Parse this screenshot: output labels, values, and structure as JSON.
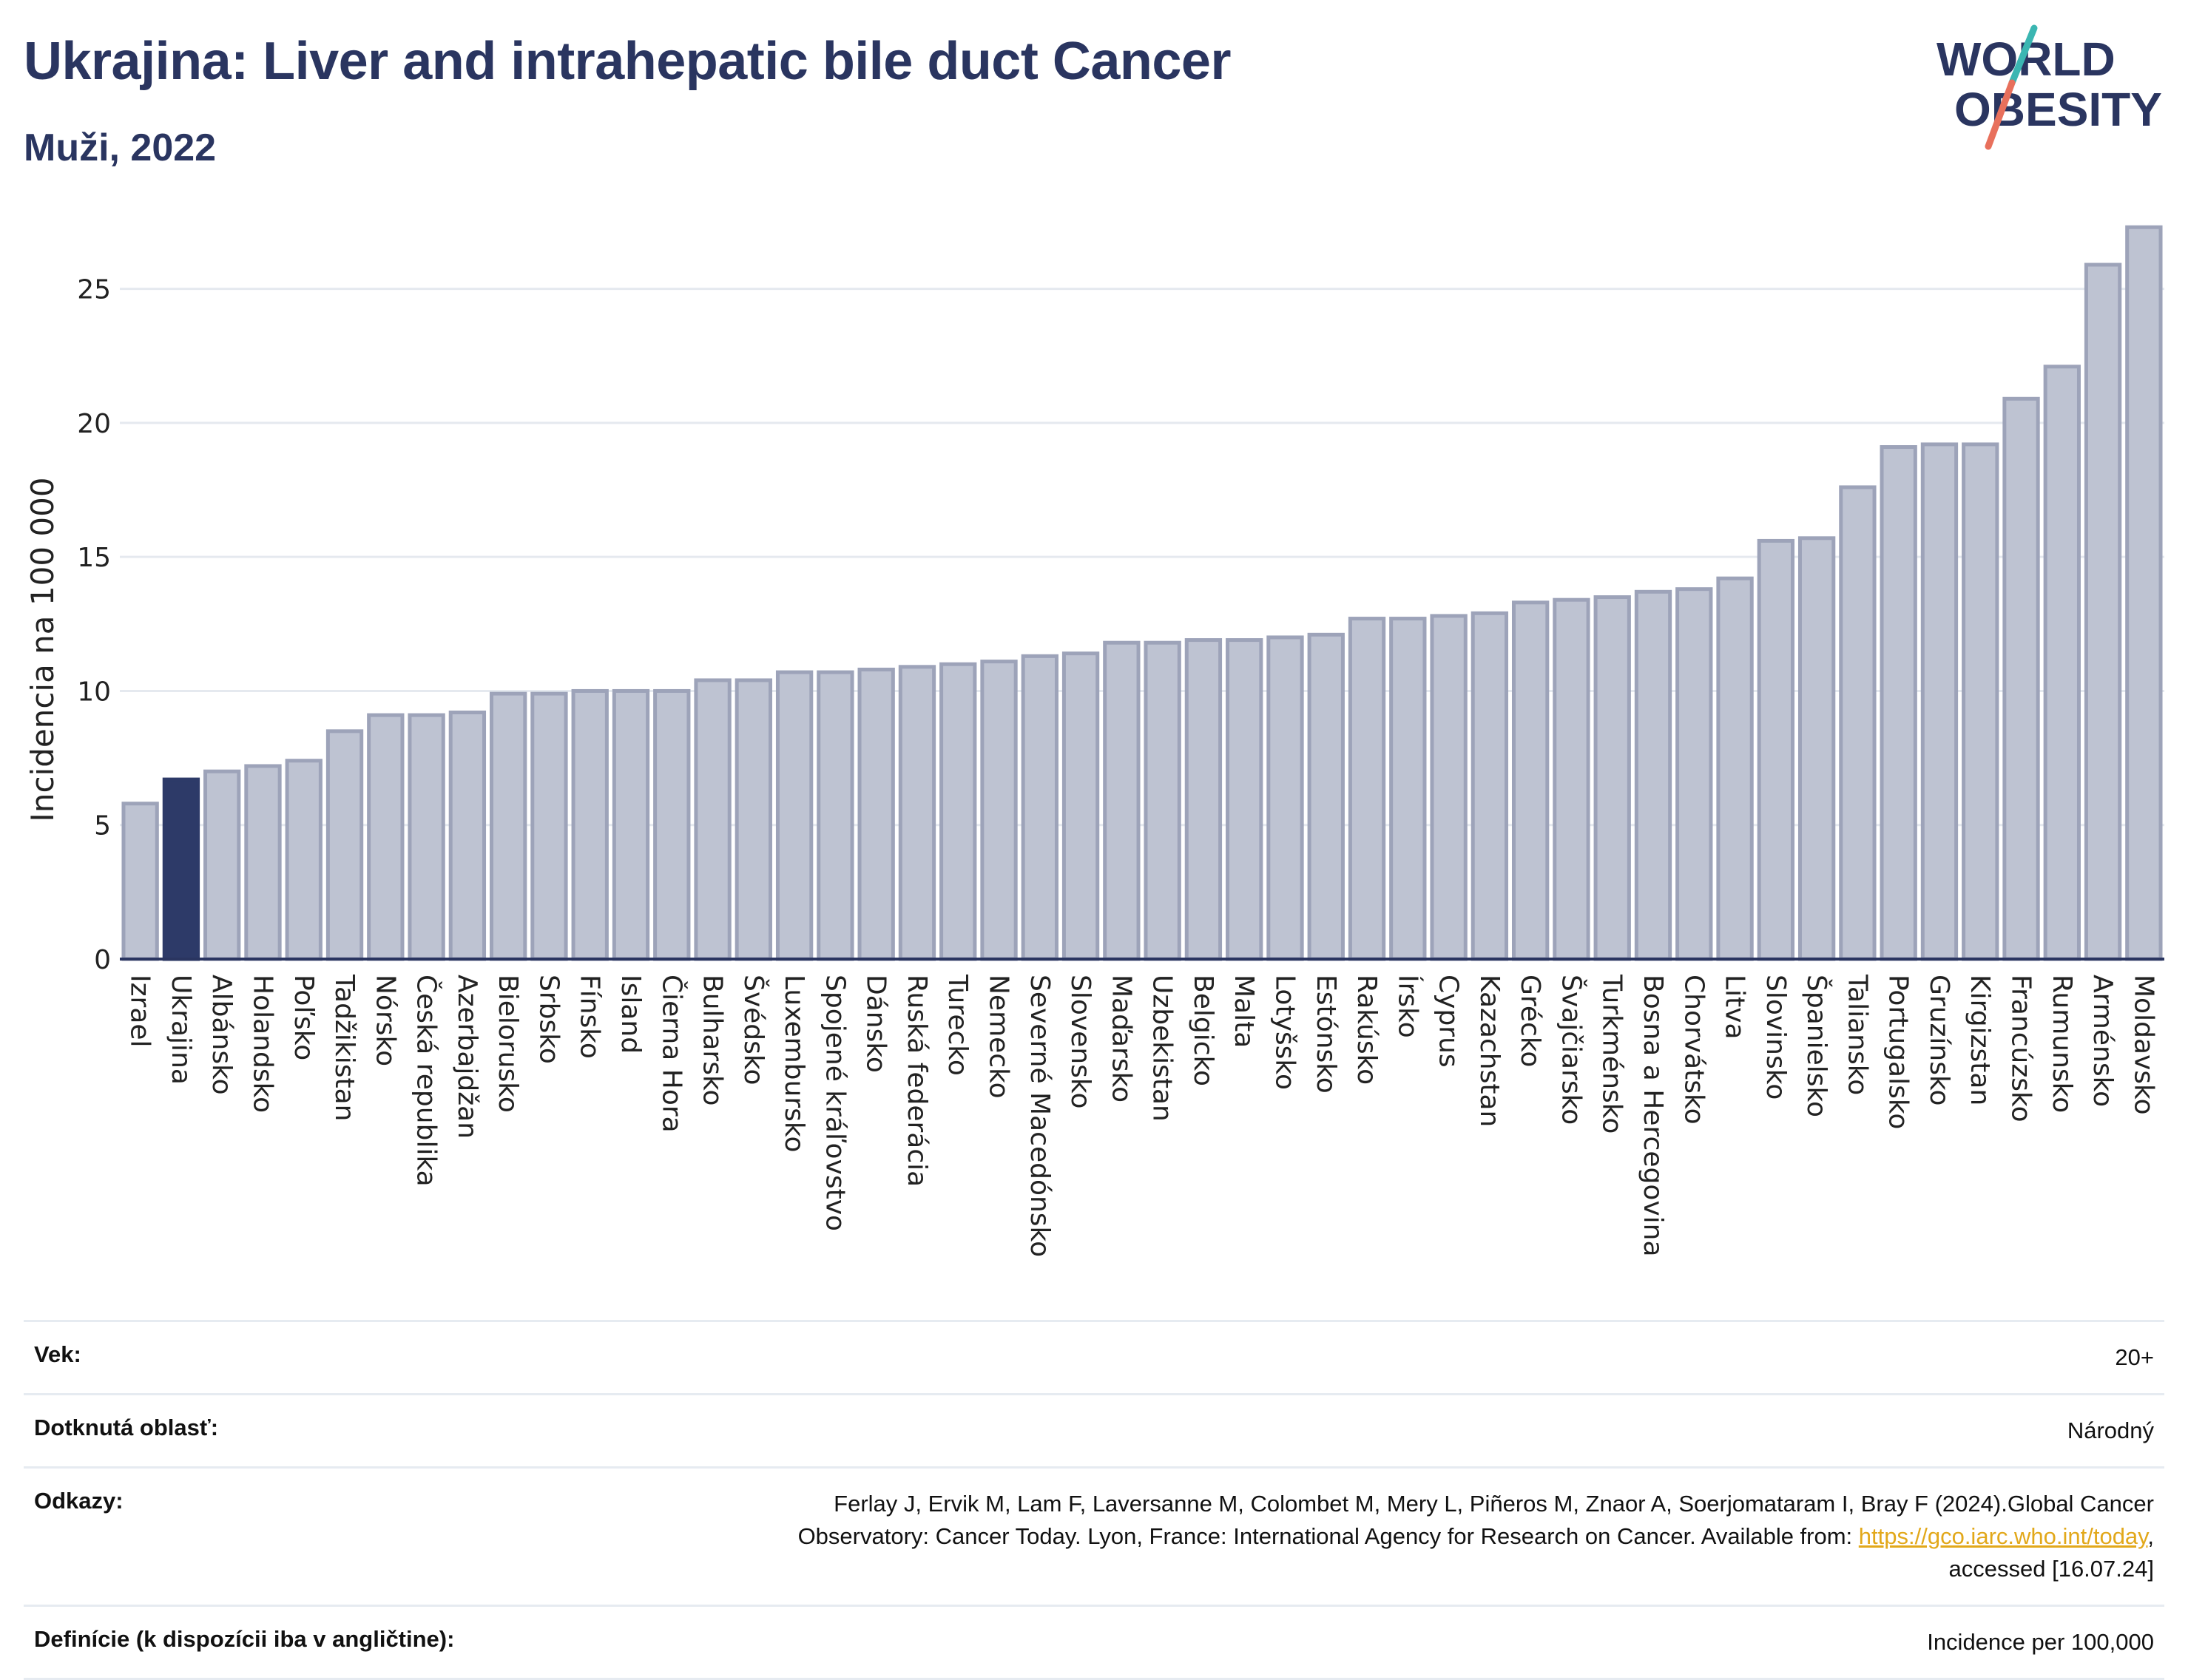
{
  "header": {
    "title": "Ukrajina: Liver and intrahepatic bile duct Cancer",
    "subtitle": "Muži, 2022"
  },
  "logo": {
    "line1": "WORLD",
    "line2": "OBESITY"
  },
  "colors": {
    "bar": "#bec3d2",
    "bar_border": "#9da3b9",
    "highlight": "#2d3a68",
    "title": "#2a3560",
    "grid": "#e5e9ef",
    "axis": "#2a3560"
  },
  "chart_data": {
    "type": "bar",
    "title": "Ukrajina: Liver and intrahepatic bile duct Cancer",
    "subtitle": "Muži, 2022",
    "ylabel": "Incidencia na 100 000",
    "xlabel": "",
    "ylim": [
      0,
      27.5
    ],
    "yticks": [
      0,
      5,
      10,
      15,
      20,
      25
    ],
    "grid": true,
    "highlight": "Ukrajina",
    "categories": [
      "Izrael",
      "Ukrajina",
      "Albánsko",
      "Holandsko",
      "Poľsko",
      "Tadžikistan",
      "Nórsko",
      "Česká republika",
      "Azerbajdžan",
      "Bielorusko",
      "Srbsko",
      "Fínsko",
      "Island",
      "Čierna Hora",
      "Bulharsko",
      "Švédsko",
      "Luxembursko",
      "Spojené kráľovstvo",
      "Dánsko",
      "Ruská federácia",
      "Turecko",
      "Nemecko",
      "Severné Macedónsko",
      "Slovensko",
      "Maďarsko",
      "Uzbekistan",
      "Belgicko",
      "Malta",
      "Lotyšsko",
      "Estónsko",
      "Rakúsko",
      "Írsko",
      "Cyprus",
      "Kazachstan",
      "Grécko",
      "Švajčiarsko",
      "Turkménsko",
      "Bosna a Hercegovina",
      "Chorvátsko",
      "Litva",
      "Slovinsko",
      "Španielsko",
      "Taliansko",
      "Portugalsko",
      "Gruzínsko",
      "Kirgizstan",
      "Francúzsko",
      "Rumunsko",
      "Arménsko",
      "Moldavsko"
    ],
    "values": [
      5.8,
      6.7,
      7.0,
      7.2,
      7.4,
      8.5,
      9.1,
      9.1,
      9.2,
      9.9,
      9.9,
      10.0,
      10.0,
      10.0,
      10.4,
      10.4,
      10.7,
      10.7,
      10.8,
      10.9,
      11.0,
      11.1,
      11.3,
      11.4,
      11.8,
      11.8,
      11.9,
      11.9,
      12.0,
      12.1,
      12.7,
      12.7,
      12.8,
      12.9,
      13.3,
      13.4,
      13.5,
      13.7,
      13.8,
      14.2,
      15.6,
      15.7,
      17.6,
      19.1,
      19.2,
      19.2,
      20.9,
      22.1,
      25.9,
      27.3
    ]
  },
  "info": {
    "rows": [
      {
        "key": "Vek:",
        "value": "20+"
      },
      {
        "key": "Dotknutá oblasť:",
        "value": "Národný"
      },
      {
        "key": "Odkazy:",
        "value_line1": "Ferlay J, Ervik M, Lam F, Laversanne M, Colombet M, Mery L, Piñeros M, Znaor A, Soerjomataram I, Bray F (2024).Global Cancer",
        "value_line2_pre": "Observatory: Cancer Today. Lyon, France: International Agency for Research on Cancer. Available from: ",
        "link": "https://gco.iarc.who.int/today",
        "value_line2_post": ",",
        "value_line3": "accessed [16.07.24]"
      },
      {
        "key": "Definície (k dispozícii iba v angličtine):",
        "value": "Incidence per 100,000"
      }
    ]
  }
}
